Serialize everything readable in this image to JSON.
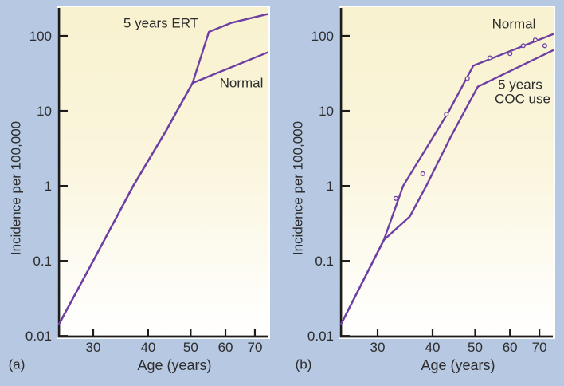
{
  "figure": {
    "background_color": "#b6c8e2",
    "plot_bg_top_color": "#f8f2cf",
    "plot_bg_bottom_color": "#ffffff",
    "curve_color": "#6e3fa3",
    "axis_color": "#1c1c1c",
    "text_color": "#2d2d2d"
  },
  "chart_data": [
    {
      "type": "line",
      "panel_label": "(a)",
      "xlabel": "Age (years)",
      "ylabel": "Incidence per 100,000",
      "x_scale": "log",
      "y_scale": "log",
      "xlim": [
        25.07,
        74.85
      ],
      "ylim": [
        0.0098,
        235.5
      ],
      "x_ticks": [
        30,
        40,
        50,
        60,
        70
      ],
      "y_ticks": [
        100,
        10,
        1,
        0.1,
        0.01
      ],
      "grid": false,
      "series": [
        {
          "name": "5 years ERT",
          "points": [
            [
              25.1,
              0.0145
            ],
            [
              30,
              0.1
            ],
            [
              37,
              1
            ],
            [
              44,
              5.5
            ],
            [
              50.5,
              23.5
            ],
            [
              55,
              113
            ],
            [
              62,
              150
            ],
            [
              74.8,
              195
            ]
          ]
        },
        {
          "name": "Normal",
          "points": [
            [
              25.1,
              0.0145
            ],
            [
              30,
              0.1
            ],
            [
              37,
              1
            ],
            [
              44,
              5.5
            ],
            [
              50.5,
              23.5
            ],
            [
              74.8,
              60
            ]
          ]
        }
      ]
    },
    {
      "type": "line",
      "panel_label": "(b)",
      "xlabel": "Age (years)",
      "ylabel": "Incidence per 100,000",
      "x_scale": "log",
      "y_scale": "log",
      "xlim": [
        24.76,
        75.1
      ],
      "ylim": [
        0.0098,
        235.5
      ],
      "x_ticks": [
        30,
        40,
        50,
        60,
        70
      ],
      "y_ticks": [
        100,
        10,
        1,
        0.1,
        0.01
      ],
      "grid": false,
      "series": [
        {
          "name": "Normal",
          "points": [
            [
              24.8,
              0.0145
            ],
            [
              31,
              0.19
            ],
            [
              34.3,
              1
            ],
            [
              43.5,
              9.7
            ],
            [
              49.5,
              40
            ],
            [
              75.1,
              105
            ]
          ]
        },
        {
          "name": "5 years COC use",
          "label_lines": [
            "5 years",
            "COC use"
          ],
          "points": [
            [
              24.8,
              0.0145
            ],
            [
              31,
              0.19
            ],
            [
              35.5,
              0.39
            ],
            [
              38.7,
              1
            ],
            [
              44,
              4.5
            ],
            [
              50.7,
              21
            ],
            [
              75.1,
              64
            ]
          ]
        }
      ],
      "scatter": {
        "name": "observed incidence points",
        "points": [
          [
            33,
            0.68
          ],
          [
            38,
            1.45
          ],
          [
            43,
            9
          ],
          [
            48,
            27
          ],
          [
            54,
            51
          ],
          [
            60,
            58
          ],
          [
            64.3,
            74
          ],
          [
            68.5,
            88
          ],
          [
            72,
            74
          ]
        ]
      }
    }
  ]
}
